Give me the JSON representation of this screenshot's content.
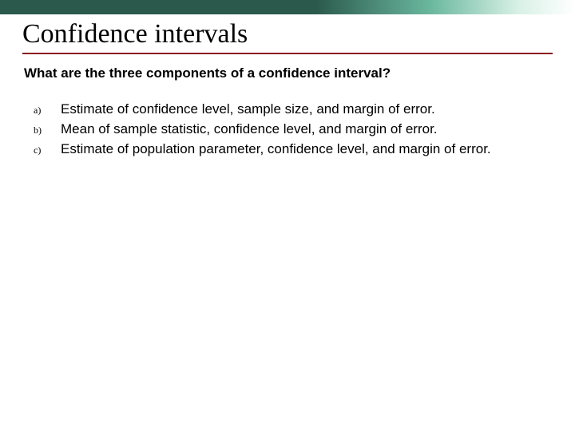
{
  "colors": {
    "bar_start": "#2b5a4d",
    "bar_mid": "#6bb89f",
    "bar_end": "#ffffff",
    "title_underline": "#8b1a1a",
    "text": "#000000",
    "background": "#ffffff"
  },
  "typography": {
    "title_font": "Times New Roman",
    "title_size_pt": 26,
    "body_font": "Arial",
    "question_size_pt": 13,
    "question_weight": "bold",
    "option_label_font": "Times New Roman",
    "option_label_size_pt": 9,
    "option_text_size_pt": 13
  },
  "title": "Confidence intervals",
  "question": "What are the three components of a confidence interval?",
  "options": [
    {
      "label": "a)",
      "text": "Estimate of confidence level, sample size, and margin of error."
    },
    {
      "label": "b)",
      "text": "Mean of sample statistic, confidence level, and margin of error."
    },
    {
      "label": "c)",
      "text": "Estimate of population parameter, confidence level, and margin of error."
    }
  ]
}
